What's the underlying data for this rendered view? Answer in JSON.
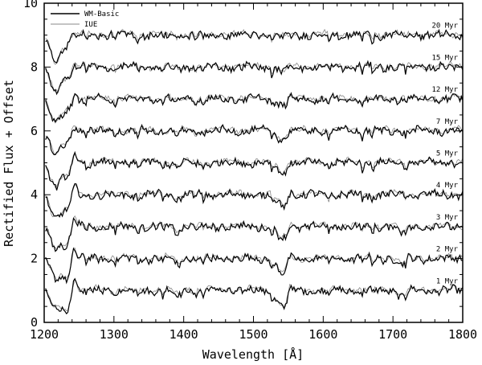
{
  "chart_data": {
    "type": "line",
    "title": "",
    "xlabel": "Wavelength [Å]",
    "ylabel": "Rectified Flux + Offset",
    "xlim": [
      1200,
      1800
    ],
    "ylim": [
      0,
      10
    ],
    "xticks": [
      "1200",
      "1300",
      "1400",
      "1500",
      "1600",
      "1700",
      "1800"
    ],
    "yticks": [
      "0",
      "2",
      "4",
      "6",
      "8",
      "10"
    ],
    "legend": {
      "position": "top-left",
      "entries": [
        {
          "name": "WM-Basic",
          "color": "#000000",
          "style": "thick"
        },
        {
          "name": "IUE",
          "color": "#888888",
          "style": "thin"
        }
      ]
    },
    "grid": false,
    "spectra": [
      {
        "label": "1 Myr",
        "offset": 1.0
      },
      {
        "label": "2 Myr",
        "offset": 2.0
      },
      {
        "label": "3 Myr",
        "offset": 3.0
      },
      {
        "label": "4 Myr",
        "offset": 4.0
      },
      {
        "label": "5 Myr",
        "offset": 5.0
      },
      {
        "label": "7 Myr",
        "offset": 6.0
      },
      {
        "label": "12 Myr",
        "offset": 7.0
      },
      {
        "label": "15 Myr",
        "offset": 8.0
      },
      {
        "label": "20 Myr",
        "offset": 9.0
      }
    ]
  }
}
